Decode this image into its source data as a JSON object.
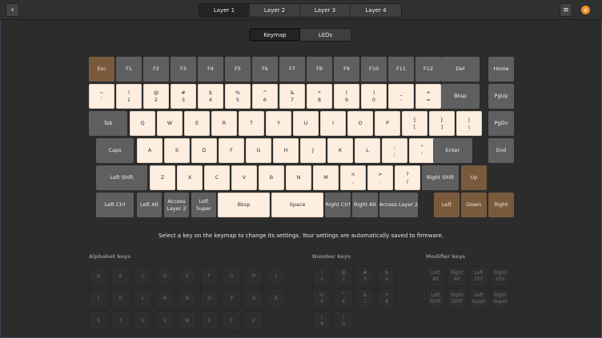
{
  "header": {
    "back_icon": "chevron-left-icon",
    "layers": [
      "Layer 1",
      "Layer 2",
      "Layer 3",
      "Layer 4"
    ],
    "active_layer": 0,
    "menu_icon": "hamburger-icon",
    "close_icon": "close-icon",
    "close_color": "#f08a24"
  },
  "view_tabs": {
    "items": [
      "Keymap",
      "LEDs"
    ],
    "active": 0
  },
  "keyboard": {
    "colors": {
      "gray": "#5f5f5f",
      "cream": "#fdeee0",
      "brown": "#7a5a3c"
    },
    "rows": [
      [
        [
          "Esc",
          "",
          "b"
        ],
        [
          "F1",
          "",
          "g"
        ],
        [
          "F2",
          "",
          "g"
        ],
        [
          "F3",
          "",
          "g"
        ],
        [
          "F4",
          "",
          "g"
        ],
        [
          "F5",
          "",
          "g"
        ],
        [
          "F6",
          "",
          "g"
        ],
        [
          "F7",
          "",
          "g"
        ],
        [
          "F8",
          "",
          "g"
        ],
        [
          "F9",
          "",
          "g"
        ],
        [
          "F10",
          "",
          "g"
        ],
        [
          "F11",
          "",
          "g"
        ],
        [
          "F12",
          "",
          "g"
        ],
        [
          "Del",
          "",
          "g"
        ],
        [
          "Home",
          "",
          "g"
        ]
      ],
      [
        [
          "~",
          "`",
          "c"
        ],
        [
          "!",
          "1",
          "c"
        ],
        [
          "@",
          "2",
          "c"
        ],
        [
          "#",
          "3",
          "c"
        ],
        [
          "$",
          "4",
          "c"
        ],
        [
          "%",
          "5",
          "c"
        ],
        [
          "^",
          "6",
          "c"
        ],
        [
          "&",
          "7",
          "c"
        ],
        [
          "*",
          "8",
          "c"
        ],
        [
          "(",
          "9",
          "c"
        ],
        [
          ")",
          "0",
          "c"
        ],
        [
          "_",
          "-",
          "c"
        ],
        [
          "+",
          "=",
          "c"
        ],
        [
          "Bksp",
          "",
          "g"
        ],
        [
          "PgUp",
          "",
          "g"
        ]
      ],
      [
        [
          "Tab",
          "",
          "g"
        ],
        [
          "Q",
          "",
          "c"
        ],
        [
          "W",
          "",
          "c"
        ],
        [
          "E",
          "",
          "c"
        ],
        [
          "R",
          "",
          "c"
        ],
        [
          "T",
          "",
          "c"
        ],
        [
          "Y",
          "",
          "c"
        ],
        [
          "U",
          "",
          "c"
        ],
        [
          "I",
          "",
          "c"
        ],
        [
          "O",
          "",
          "c"
        ],
        [
          "P",
          "",
          "c"
        ],
        [
          "{",
          "[",
          "c"
        ],
        [
          "}",
          "]",
          "c"
        ],
        [
          "|",
          "\\",
          "c"
        ],
        [
          "PgDn",
          "",
          "g"
        ]
      ],
      [
        [
          "Caps",
          "",
          "g"
        ],
        [
          "A",
          "",
          "c"
        ],
        [
          "S",
          "",
          "c"
        ],
        [
          "D",
          "",
          "c"
        ],
        [
          "F",
          "",
          "c"
        ],
        [
          "G",
          "",
          "c"
        ],
        [
          "H",
          "",
          "c"
        ],
        [
          "J",
          "",
          "c"
        ],
        [
          "K",
          "",
          "c"
        ],
        [
          "L",
          "",
          "c"
        ],
        [
          ":",
          ";",
          "c"
        ],
        [
          "\"",
          "'",
          "c"
        ],
        [
          "Enter",
          "",
          "g"
        ],
        [
          "End",
          "",
          "g"
        ]
      ],
      [
        [
          "Left Shift",
          "",
          "g"
        ],
        [
          "Z",
          "",
          "c"
        ],
        [
          "X",
          "",
          "c"
        ],
        [
          "C",
          "",
          "c"
        ],
        [
          "V",
          "",
          "c"
        ],
        [
          "B",
          "",
          "c"
        ],
        [
          "N",
          "",
          "c"
        ],
        [
          "M",
          "",
          "c"
        ],
        [
          "<",
          ",",
          "c"
        ],
        [
          ">",
          ".",
          "c"
        ],
        [
          "?",
          "/",
          "c"
        ],
        [
          "Right Shift",
          "",
          "g"
        ],
        [
          "Up",
          "",
          "b"
        ]
      ],
      [
        [
          "Left Ctrl",
          "",
          "g"
        ],
        [
          "Left Alt",
          "",
          "g"
        ],
        [
          "Access",
          "Layer 2",
          "g"
        ],
        [
          "Left",
          "Super",
          "g"
        ],
        [
          "Bksp",
          "",
          "c"
        ],
        [
          "Space",
          "",
          "c"
        ],
        [
          "Right Ctrl",
          "",
          "g"
        ],
        [
          "Right Alt",
          "",
          "g"
        ],
        [
          "Access Layer 2",
          "",
          "g"
        ],
        [
          "Left",
          "",
          "b"
        ],
        [
          "Down",
          "",
          "b"
        ],
        [
          "Right",
          "",
          "b"
        ]
      ]
    ]
  },
  "hint": "Select a key on the keymap to change its settings. Your settings are automatically saved to firmware.",
  "palette": {
    "alphabet": {
      "title": "Alphabet keys",
      "keys": [
        [
          "A",
          ""
        ],
        [
          "B",
          ""
        ],
        [
          "C",
          ""
        ],
        [
          "D",
          ""
        ],
        [
          "E",
          ""
        ],
        [
          "F",
          ""
        ],
        [
          "G",
          ""
        ],
        [
          "H",
          ""
        ],
        [
          "I",
          ""
        ],
        [
          "J",
          ""
        ],
        [
          "K",
          ""
        ],
        [
          "L",
          ""
        ],
        [
          "M",
          ""
        ],
        [
          "N",
          ""
        ],
        [
          "O",
          ""
        ],
        [
          "P",
          ""
        ],
        [
          "Q",
          ""
        ],
        [
          "R",
          ""
        ],
        [
          "S",
          ""
        ],
        [
          "T",
          ""
        ],
        [
          "U",
          ""
        ],
        [
          "V",
          ""
        ],
        [
          "W",
          ""
        ],
        [
          "X",
          ""
        ],
        [
          "Y",
          ""
        ],
        [
          "Z",
          ""
        ]
      ]
    },
    "number": {
      "title": "Number keys",
      "keys": [
        [
          "!",
          "1"
        ],
        [
          "@",
          "2"
        ],
        [
          "#",
          "3"
        ],
        [
          "$",
          "4"
        ],
        [
          "%",
          "5"
        ],
        [
          "^",
          "6"
        ],
        [
          "&",
          "7"
        ],
        [
          "*",
          "8"
        ],
        [
          "(",
          "9"
        ],
        [
          ")",
          "0"
        ]
      ]
    },
    "modifier": {
      "title": "Modifier keys",
      "keys": [
        [
          "Left",
          "Alt"
        ],
        [
          "Right",
          "Alt"
        ],
        [
          "Left",
          "Ctrl"
        ],
        [
          "Right",
          "Ctrl"
        ],
        [
          "Left",
          "Shift"
        ],
        [
          "Right",
          "Shift"
        ],
        [
          "Left",
          "Super"
        ],
        [
          "Right",
          "Super"
        ]
      ]
    }
  }
}
